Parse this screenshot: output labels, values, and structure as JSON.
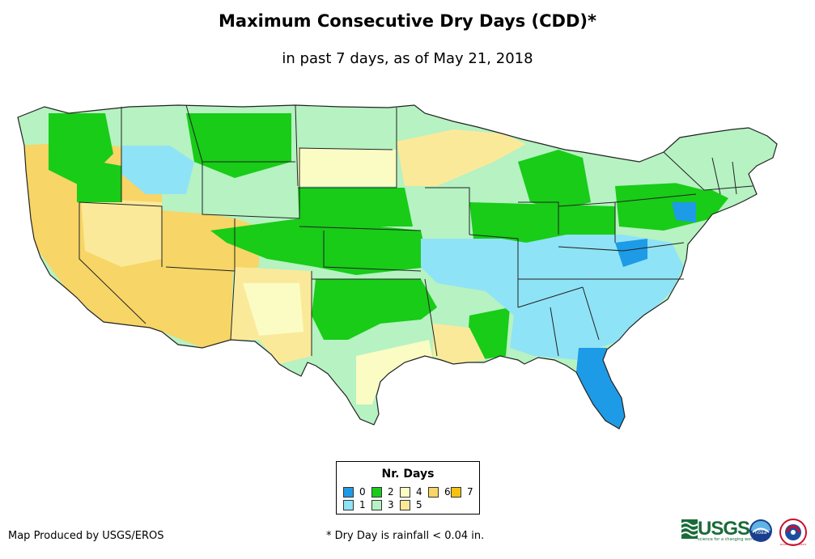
{
  "title": "Maximum Consecutive Dry Days (CDD)*",
  "subtitle": "in past 7 days, as of May 21, 2018",
  "legend": {
    "title": "Nr. Days",
    "items": [
      {
        "label": "0",
        "color": "#1e9be6"
      },
      {
        "label": "1",
        "color": "#8fe3f6"
      },
      {
        "label": "2",
        "color": "#18cc18"
      },
      {
        "label": "3",
        "color": "#b6f2c2"
      },
      {
        "label": "4",
        "color": "#fafcc4"
      },
      {
        "label": "5",
        "color": "#fbe99a"
      },
      {
        "label": "6",
        "color": "#f7d566"
      },
      {
        "label": "7",
        "color": "#f5c211"
      }
    ]
  },
  "footer": {
    "credit": "Map Produced by USGS/EROS",
    "note": "* Dry Day is rainfall < 0.04 in."
  },
  "logos": {
    "usgs": "USGS",
    "usgs_tagline": "science for a changing world",
    "noaa": "noaa",
    "nws": "NATIONAL WEATHER SERVICE"
  },
  "map": {
    "region": "Contiguous United States",
    "layer": "CDD categories 0–7 days"
  }
}
